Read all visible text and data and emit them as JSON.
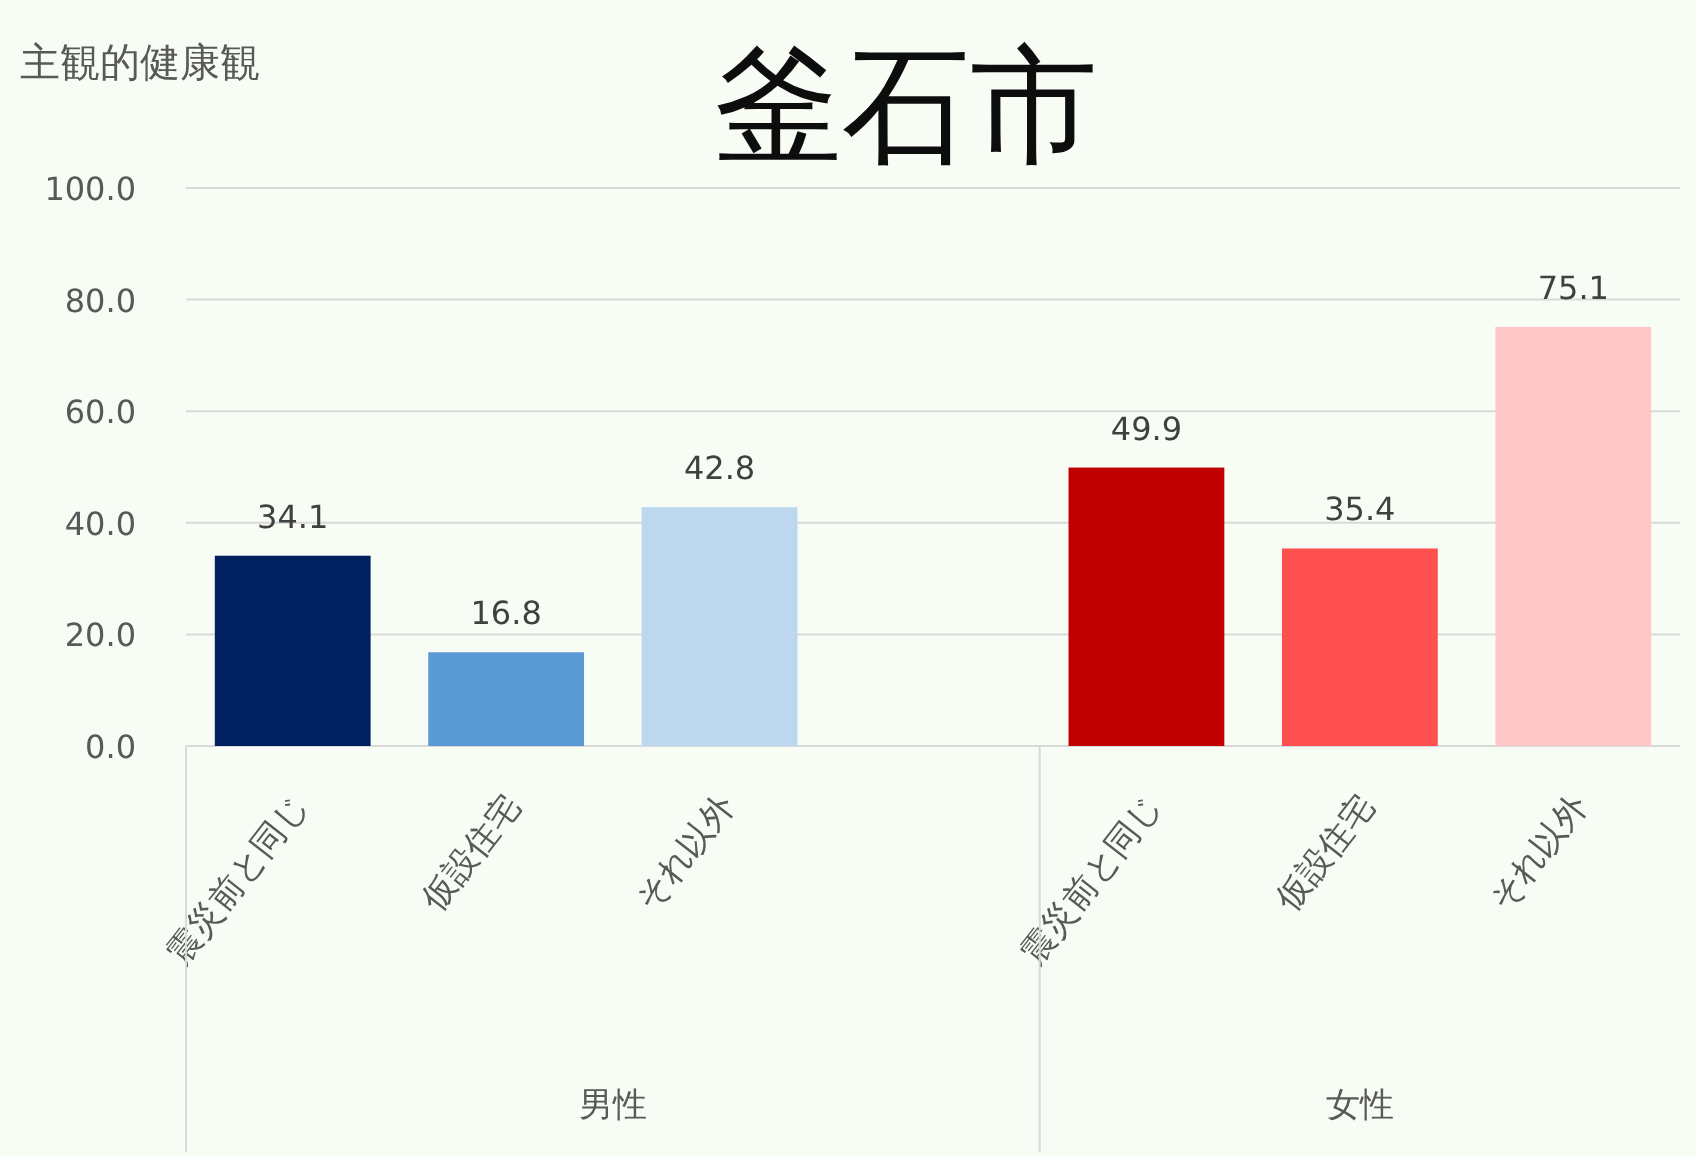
{
  "chart_data": {
    "type": "bar",
    "title": "釜石市",
    "ylabel": "主観的健康観",
    "categories": [
      "震災前と同じ",
      "仮設住宅",
      "それ以外",
      null,
      "震災前と同じ",
      "仮設住宅",
      "それ以外"
    ],
    "values": [
      34.1,
      16.8,
      42.8,
      null,
      49.9,
      35.4,
      75.1
    ],
    "colors": [
      "#002060",
      "#5b9bd5",
      "#bdd7ee",
      null,
      "#c00000",
      "#ff5050",
      "#ffc7c7"
    ],
    "ylim": [
      0,
      100
    ],
    "yticks": [
      {
        "value": 0,
        "label": "0.0"
      },
      {
        "value": 20,
        "label": "20.0"
      },
      {
        "value": 40,
        "label": "40.0"
      },
      {
        "value": 60,
        "label": "60.0"
      },
      {
        "value": 80,
        "label": "80.0"
      },
      {
        "value": 100,
        "label": "100.0"
      }
    ],
    "grid": "y",
    "data_labels": true,
    "annotations": [
      "男性",
      "女性"
    ]
  }
}
